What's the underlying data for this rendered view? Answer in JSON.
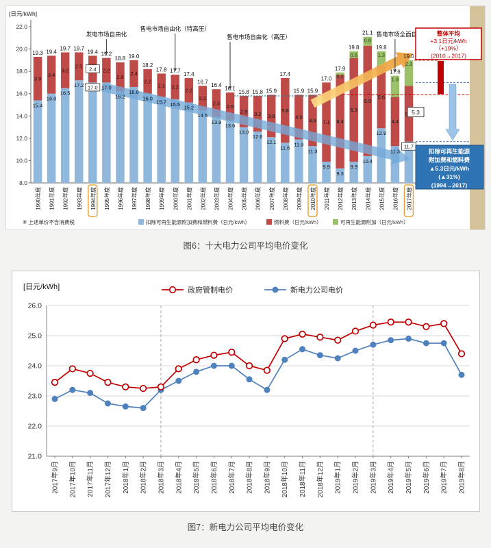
{
  "page": {
    "background": "#f3f3f1"
  },
  "chart_data": [
    {
      "id": "figure6",
      "type": "bar",
      "stacked": true,
      "caption": "图6：十大电力公司平均电价变化",
      "unit_label": "[日元/kWh]",
      "note": "※ 上述单价不含消费税",
      "ylim": [
        8.0,
        22.0
      ],
      "ytick_step": 2.0,
      "categories": [
        "1990年度",
        "1991年度",
        "1992年度",
        "1993年度",
        "1994年度",
        "1995年度",
        "1996年度",
        "1997年度",
        "1998年度",
        "1999年度",
        "2000年度",
        "2001年度",
        "2002年度",
        "2003年度",
        "2004年度",
        "2005年度",
        "2006年度",
        "2007年度",
        "2008年度",
        "2009年度",
        "2010年度",
        "2011年度",
        "2012年度",
        "2013年度",
        "2014年度",
        "2015年度",
        "2016年度",
        "2017年度"
      ],
      "series": [
        {
          "name": "扣除可再生能源附加费和燃料费（日元/kWh）",
          "color": "#8FB8DC",
          "values": [
            15.4,
            16.0,
            16.5,
            17.2,
            17.0,
            17.0,
            16.2,
            16.6,
            16.0,
            15.7,
            15.5,
            15.2,
            14.5,
            13.9,
            13.6,
            13.0,
            12.6,
            12.1,
            11.6,
            11.9,
            11.3,
            9.9,
            9.3,
            9.9,
            10.4,
            12.9,
            11.3,
            11.7
          ]
        },
        {
          "name": "燃料费（日元/kWh）",
          "color": "#BE4B48",
          "values": [
            3.9,
            3.4,
            3.2,
            2.5,
            2.4,
            2.2,
            2.6,
            2.4,
            2.2,
            2.1,
            2.2,
            2.2,
            2.2,
            2.5,
            2.5,
            2.8,
            3.2,
            3.8,
            5.8,
            4.0,
            4.6,
            7.1,
            8.4,
            9.3,
            9.9,
            5.6,
            4.4,
            5.0
          ]
        },
        {
          "name": "可再生能源附加（日元/kWh）",
          "color": "#9CC069",
          "values": [
            0,
            0,
            0,
            0,
            0,
            0,
            0,
            0,
            0,
            0,
            0,
            0,
            0,
            0,
            0,
            0,
            0,
            0,
            0,
            0,
            0,
            0,
            0.2,
            0.6,
            0.8,
            1.3,
            1.9,
            2.3
          ]
        }
      ],
      "totals": [
        19.3,
        19.4,
        19.7,
        19.7,
        19.4,
        19.2,
        18.8,
        19.0,
        18.2,
        17.8,
        17.7,
        17.4,
        16.7,
        16.4,
        16.1,
        15.8,
        15.8,
        15.9,
        17.4,
        15.9,
        15.9,
        17.0,
        17.9,
        19.8,
        21.1,
        19.8,
        17.6,
        19.0
      ],
      "annotations": {
        "liberalization_events": [
          {
            "label": "发电市场自由化",
            "target_year": "1995年度"
          },
          {
            "label": "售电市场自由化（特高压）",
            "target_year": "2000年度"
          },
          {
            "label": "售电市场自由化（高压）",
            "target_year": "2004年度"
          },
          {
            "label": "售电市场全面自由化",
            "target_year": "2016年度"
          }
        ],
        "overall_change_box": [
          "整体平均",
          "+3.1日元/kWh",
          "（+19%）",
          "(2010→2017)"
        ],
        "deduction_change_box": [
          "扣除可再生能源",
          "附加费和燃料费",
          "▲5.3日元/kWh",
          "(▲31%)",
          "(1994→2017)"
        ],
        "diff_badge": "5.3",
        "highlighted_years": [
          "1994年度",
          "2010年度",
          "2017年度"
        ],
        "boxed_value_labels": {
          "base": [
            "1994年度",
            "2017年度"
          ],
          "fuel": [
            "1994年度"
          ]
        },
        "reference_line_value": 15.8,
        "decline_arrow": {
          "from_year": "1994年度",
          "to_year": "2017年度"
        },
        "rise_arrow": {
          "from_year": "2010年度",
          "to_year": "2017年度"
        }
      }
    },
    {
      "id": "figure7",
      "type": "line",
      "caption": "图7：新电力公司平均电价变化",
      "unit_label": "[日元/kWh]",
      "ylim": [
        21.0,
        26.0
      ],
      "ytick_step": 1.0,
      "legend_position": "top",
      "x": [
        "2017年9月",
        "2017年10月",
        "2017年11月",
        "2017年12月",
        "2018年1月",
        "2018年2月",
        "2018年3月",
        "2018年4月",
        "2018年5月",
        "2018年6月",
        "2018年7月",
        "2018年8月",
        "2018年9月",
        "2018年10月",
        "2018年11月",
        "2018年12月",
        "2019年1月",
        "2019年2月",
        "2019年3月",
        "2019年4月",
        "2019年5月",
        "2019年6月",
        "2019年7月",
        "2019年8月"
      ],
      "series": [
        {
          "name": "政府管制电价",
          "color": "#C00000",
          "marker": "open-circle",
          "values": [
            23.45,
            23.9,
            23.75,
            23.45,
            23.3,
            23.25,
            23.3,
            23.9,
            24.2,
            24.35,
            24.45,
            24.0,
            23.85,
            24.9,
            25.05,
            24.95,
            24.85,
            25.15,
            25.35,
            25.45,
            25.45,
            25.3,
            25.4,
            24.4
          ]
        },
        {
          "name": "新电力公司电价",
          "color": "#4F81BD",
          "marker": "filled-circle",
          "values": [
            22.9,
            23.2,
            23.1,
            22.75,
            22.65,
            22.6,
            23.2,
            23.5,
            23.8,
            24.0,
            24.0,
            23.55,
            23.2,
            24.2,
            24.55,
            24.35,
            24.25,
            24.5,
            24.7,
            24.85,
            24.9,
            24.75,
            24.75,
            23.7
          ]
        }
      ],
      "dashed_vlines": [
        "2018年3月",
        "2019年3月"
      ]
    }
  ]
}
